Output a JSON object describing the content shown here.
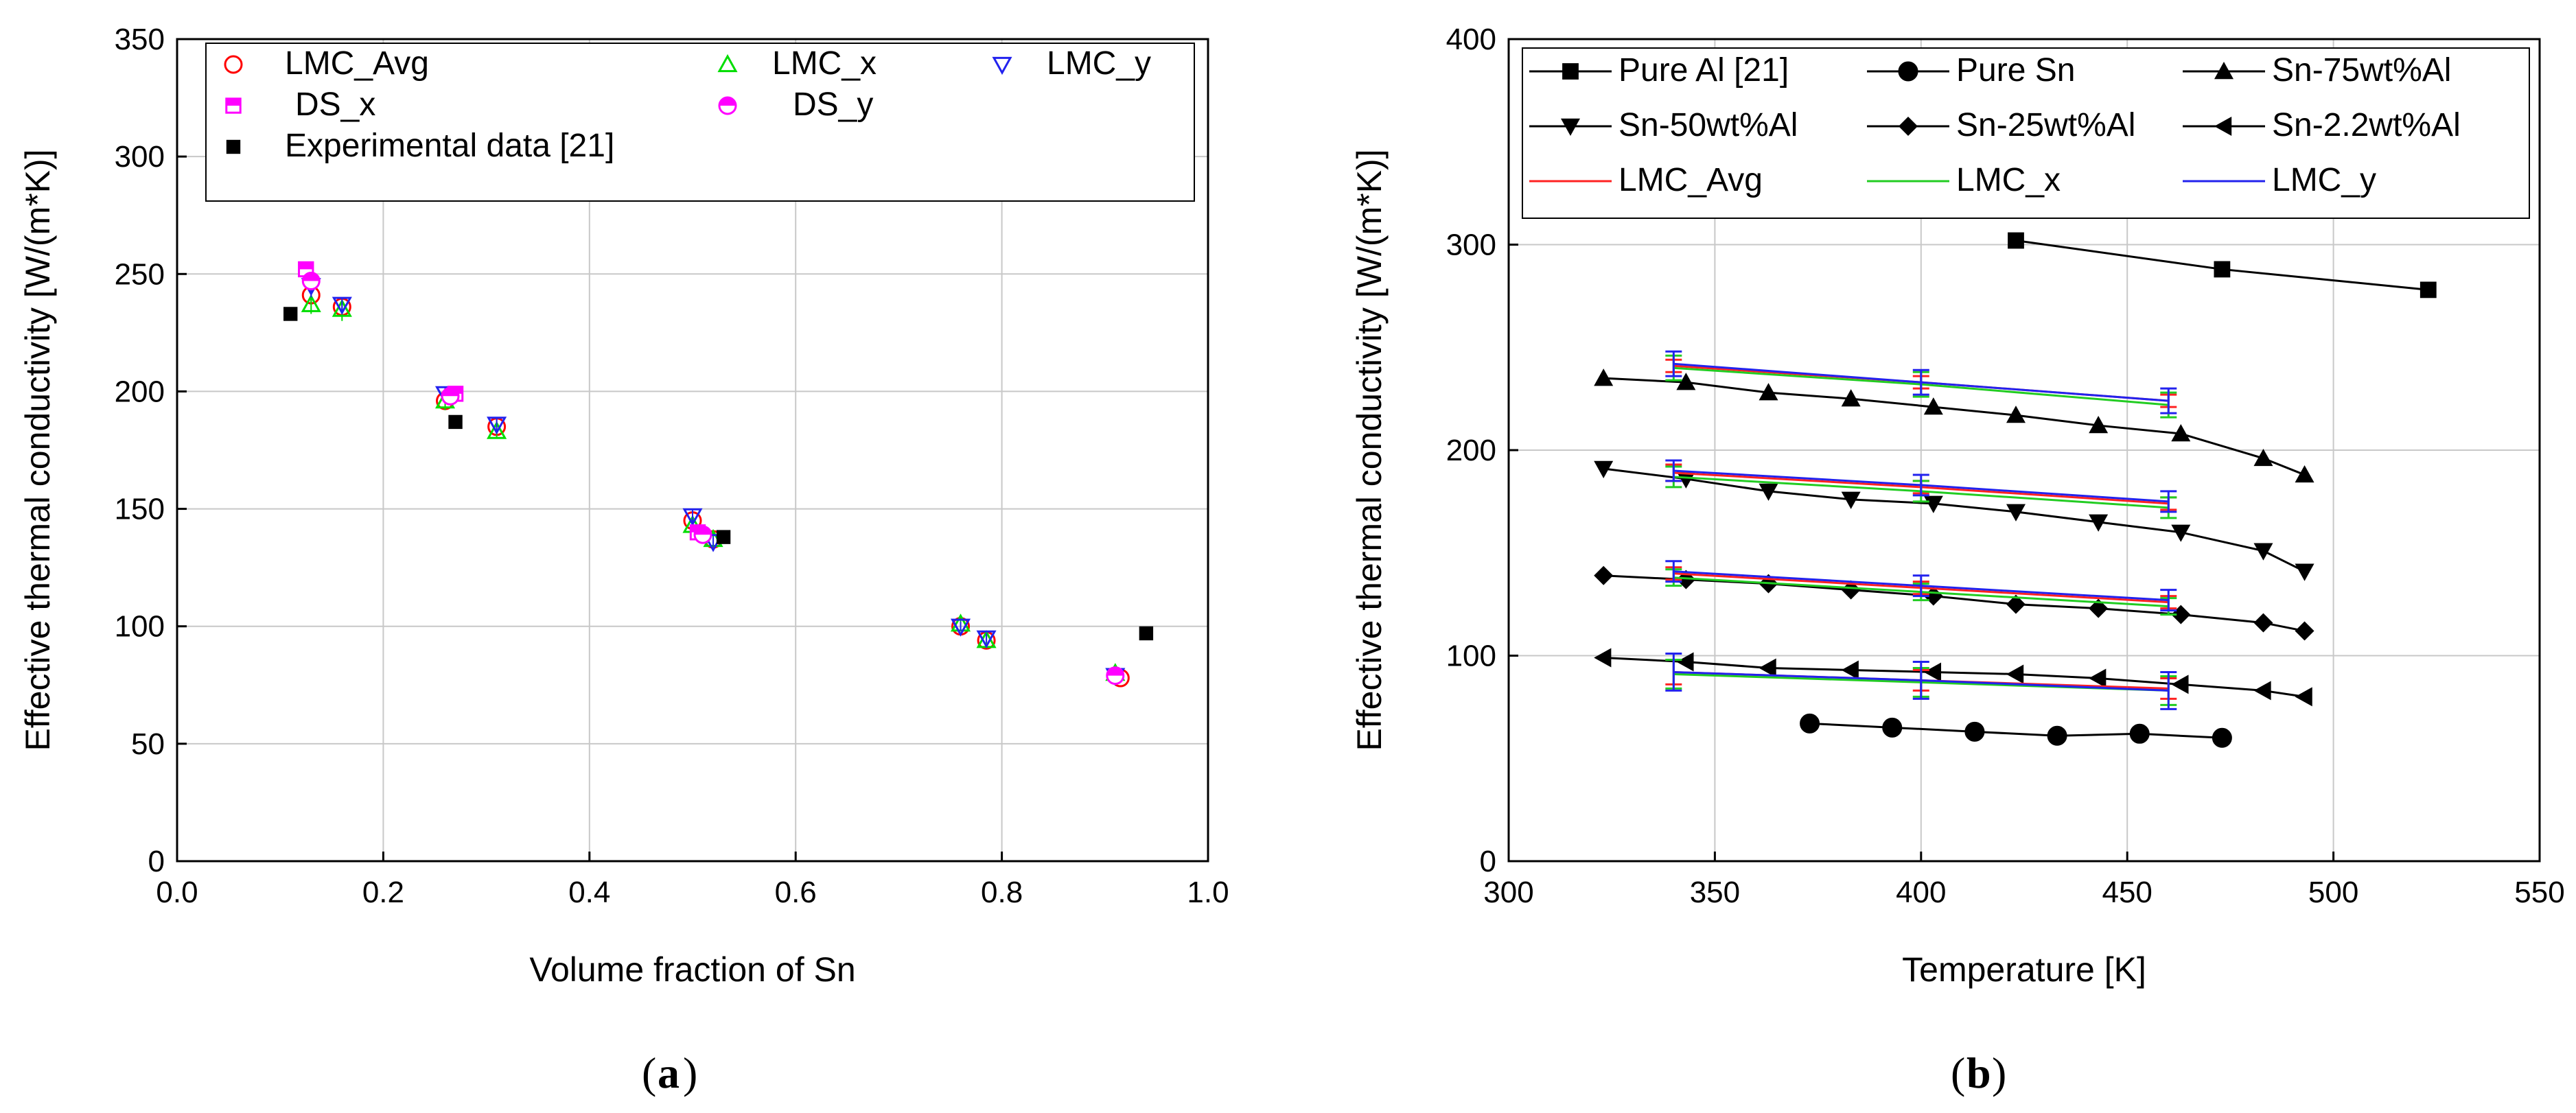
{
  "chart_data": [
    {
      "type": "scatter",
      "panel_label": "a",
      "xlabel": "Volume fraction of Sn",
      "ylabel": "Effective thermal conductivity [W/(m*K)]",
      "xlim": [
        0.0,
        1.0
      ],
      "ylim": [
        0,
        350
      ],
      "xticks": [
        0.0,
        0.2,
        0.4,
        0.6,
        0.8,
        1.0
      ],
      "xtick_labels": [
        "0.0",
        "0.2",
        "0.4",
        "0.6",
        "0.8",
        "1.0"
      ],
      "yticks": [
        0,
        50,
        100,
        150,
        200,
        250,
        300,
        350
      ],
      "ytick_labels": [
        "0",
        "50",
        "100",
        "150",
        "200",
        "250",
        "300",
        "350"
      ],
      "grid": true,
      "legend_position": "top",
      "series": [
        {
          "name": "LMC_Avg",
          "marker": "circle-open",
          "color": "#ff0000",
          "x": [
            0.13,
            0.16,
            0.26,
            0.31,
            0.5,
            0.52,
            0.76,
            0.785,
            0.915
          ],
          "y": [
            241,
            236,
            196,
            185,
            145,
            137,
            100,
            94,
            78
          ],
          "err": [
            4,
            3,
            3,
            3,
            3,
            2,
            2,
            2,
            2
          ]
        },
        {
          "name": "LMC_x",
          "marker": "triangle-up-open",
          "color": "#00dd00",
          "x": [
            0.13,
            0.16,
            0.26,
            0.31,
            0.5,
            0.52,
            0.76,
            0.785,
            0.91
          ],
          "y": [
            237,
            235,
            196,
            183,
            143,
            137,
            101,
            94,
            80
          ],
          "err": [
            4,
            5,
            4,
            3,
            3,
            3,
            2,
            2,
            2
          ]
        },
        {
          "name": "LMC_y",
          "marker": "triangle-down-open",
          "color": "#2222ee",
          "x": [
            0.13,
            0.16,
            0.26,
            0.31,
            0.5,
            0.52,
            0.76,
            0.785,
            0.91
          ],
          "y": [
            245,
            237,
            199,
            186,
            147,
            136,
            100,
            95,
            79
          ],
          "err": [
            5,
            3,
            3,
            3,
            3,
            2,
            2,
            2,
            2
          ]
        },
        {
          "name": "DS_x",
          "marker": "square-half",
          "color": "#ff00ff",
          "x": [
            0.125,
            0.27,
            0.505
          ],
          "y": [
            252,
            199,
            140
          ]
        },
        {
          "name": "DS_y",
          "marker": "circle-half",
          "color": "#ff00ff",
          "x": [
            0.13,
            0.265,
            0.51,
            0.91
          ],
          "y": [
            247,
            198,
            139,
            79
          ]
        },
        {
          "name": "Experimental data [21]",
          "marker": "square-filled",
          "color": "#000000",
          "x": [
            0.11,
            0.27,
            0.53,
            0.94
          ],
          "y": [
            233,
            187,
            138,
            97
          ]
        }
      ]
    },
    {
      "type": "line",
      "panel_label": "b",
      "xlabel": "Temperature [K]",
      "ylabel": "Effective thermal conductivity [W/(m*K)]",
      "xlim": [
        300,
        550
      ],
      "ylim": [
        0,
        400
      ],
      "xticks": [
        300,
        350,
        400,
        450,
        500,
        550
      ],
      "xtick_labels": [
        "300",
        "350",
        "400",
        "450",
        "500",
        "550"
      ],
      "yticks": [
        0,
        100,
        200,
        300,
        400
      ],
      "ytick_labels": [
        "0",
        "100",
        "200",
        "300",
        "400"
      ],
      "grid": true,
      "legend_position": "top",
      "series": [
        {
          "name": "Pure Al [21]",
          "marker": "square",
          "color": "#000000",
          "x": [
            423,
            473,
            523
          ],
          "y": [
            302,
            288,
            278
          ]
        },
        {
          "name": "Pure Sn",
          "marker": "circle",
          "color": "#000000",
          "x": [
            373,
            393,
            413,
            433,
            453,
            473
          ],
          "y": [
            67,
            65,
            63,
            61,
            62,
            60
          ]
        },
        {
          "name": "Sn-75wt%Al",
          "marker": "triangle-up",
          "color": "#000000",
          "x": [
            323,
            343,
            363,
            383,
            403,
            423,
            443,
            463,
            483,
            493
          ],
          "y": [
            235,
            233,
            228,
            225,
            221,
            217,
            212,
            208,
            196,
            188
          ]
        },
        {
          "name": "Sn-50wt%Al",
          "marker": "triangle-down",
          "color": "#000000",
          "x": [
            323,
            343,
            363,
            383,
            403,
            423,
            443,
            463,
            483,
            493
          ],
          "y": [
            191,
            186,
            180,
            176,
            174,
            170,
            165,
            160,
            151,
            141
          ]
        },
        {
          "name": "Sn-25wt%Al",
          "marker": "diamond",
          "color": "#000000",
          "x": [
            323,
            343,
            363,
            383,
            403,
            423,
            443,
            463,
            483,
            493
          ],
          "y": [
            139,
            137,
            135,
            132,
            129,
            125,
            123,
            120,
            116,
            112
          ]
        },
        {
          "name": "Sn-2.2wt%Al",
          "marker": "triangle-left",
          "color": "#000000",
          "x": [
            323,
            343,
            363,
            383,
            403,
            423,
            443,
            463,
            483,
            493
          ],
          "y": [
            99,
            97,
            94,
            93,
            92,
            91,
            89,
            86,
            83,
            80
          ]
        }
      ],
      "model_series": [
        {
          "name": "LMC_Avg",
          "color": "#ff2222",
          "groups": [
            {
              "x": [
                340,
                400,
                460
              ],
              "y": [
                241,
                233,
                224
              ],
              "err": [
                3,
                3,
                3
              ]
            },
            {
              "x": [
                340,
                400,
                460
              ],
              "y": [
                189,
                182,
                174
              ],
              "err": [
                4,
                3,
                3
              ]
            },
            {
              "x": [
                340,
                400,
                460
              ],
              "y": [
                140,
                133,
                126
              ],
              "err": [
                3,
                3,
                3
              ]
            },
            {
              "x": [
                340,
                400,
                460
              ],
              "y": [
                92,
                88,
                84
              ],
              "err": [
                6,
                5,
                5
              ]
            }
          ]
        },
        {
          "name": "LMC_x",
          "color": "#22cc22",
          "groups": [
            {
              "x": [
                340,
                400,
                460
              ],
              "y": [
                240,
                232,
                222
              ],
              "err": [
                6,
                6,
                6
              ]
            },
            {
              "x": [
                340,
                400,
                460
              ],
              "y": [
                187,
                180,
                172
              ],
              "err": [
                5,
                5,
                5
              ]
            },
            {
              "x": [
                340,
                400,
                460
              ],
              "y": [
                138,
                131,
                124
              ],
              "err": [
                4,
                4,
                4
              ]
            },
            {
              "x": [
                340,
                400,
                460
              ],
              "y": [
                91,
                87,
                83
              ],
              "err": [
                7,
                7,
                7
              ]
            }
          ]
        },
        {
          "name": "LMC_y",
          "color": "#2222ee",
          "groups": [
            {
              "x": [
                340,
                400,
                460
              ],
              "y": [
                242,
                233,
                224
              ],
              "err": [
                6,
                6,
                6
              ]
            },
            {
              "x": [
                340,
                400,
                460
              ],
              "y": [
                190,
                183,
                175
              ],
              "err": [
                5,
                5,
                5
              ]
            },
            {
              "x": [
                340,
                400,
                460
              ],
              "y": [
                141,
                134,
                127
              ],
              "err": [
                5,
                5,
                5
              ]
            },
            {
              "x": [
                340,
                400,
                460
              ],
              "y": [
                92,
                88,
                83
              ],
              "err": [
                9,
                9,
                9
              ]
            }
          ]
        }
      ]
    }
  ]
}
